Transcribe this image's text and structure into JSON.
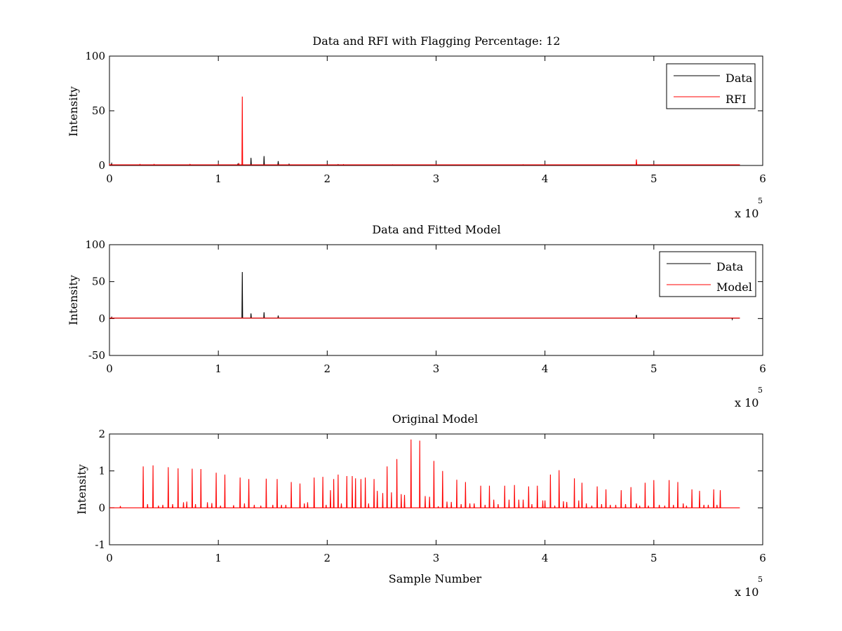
{
  "chart_data": [
    {
      "type": "line",
      "title": "Data and RFI with Flagging Percentage: 12",
      "xlabel": "",
      "ylabel": "Intensity",
      "xlim": [
        0,
        6
      ],
      "ylim": [
        0,
        100
      ],
      "x_ticks": [
        "0",
        "1",
        "2",
        "3",
        "4",
        "5",
        "6"
      ],
      "y_ticks": [
        "0",
        "50",
        "100"
      ],
      "x_multiplier": "x 10",
      "x_multiplier_exp": "5",
      "legend_position": "top-right",
      "series": [
        {
          "name": "Data",
          "color": "#000000",
          "baseline": 0.6,
          "x_end": 5.79,
          "spikes": [
            [
              0.02,
              1.8
            ],
            [
              0.74,
              0.9
            ],
            [
              1.18,
              1.4
            ],
            [
              1.3,
              7.0
            ],
            [
              1.42,
              8.5
            ],
            [
              1.55,
              4.0
            ],
            [
              1.65,
              1.2
            ],
            [
              2.1,
              0.9
            ],
            [
              2.6,
              0.7
            ],
            [
              3.1,
              0.6
            ],
            [
              4.0,
              0.6
            ],
            [
              4.9,
              0.5
            ],
            [
              5.7,
              0.5
            ]
          ]
        },
        {
          "name": "RFI",
          "color": "#ff0000",
          "baseline": 0.6,
          "x_end": 5.79,
          "spikes": [
            [
              0.0,
              1.6
            ],
            [
              0.28,
              1.0
            ],
            [
              0.41,
              1.0
            ],
            [
              0.74,
              1.0
            ],
            [
              1.0,
              1.0
            ],
            [
              1.19,
              1.5
            ],
            [
              1.22,
              63.0
            ],
            [
              2.15,
              0.9
            ],
            [
              3.0,
              0.7
            ],
            [
              3.8,
              0.8
            ],
            [
              4.84,
              5.5
            ]
          ]
        }
      ]
    },
    {
      "type": "line",
      "title": "Data and Fitted Model",
      "xlabel": "",
      "ylabel": "Intensity",
      "xlim": [
        0,
        6
      ],
      "ylim": [
        -50,
        100
      ],
      "x_ticks": [
        "0",
        "1",
        "2",
        "3",
        "4",
        "5",
        "6"
      ],
      "y_ticks": [
        "-50",
        "0",
        "50",
        "100"
      ],
      "x_multiplier": "x 10",
      "x_multiplier_exp": "5",
      "legend_position": "top-right",
      "series": [
        {
          "name": "Data",
          "color": "#000000",
          "baseline": 0.6,
          "x_end": 5.79,
          "spikes": [
            [
              0.02,
              1.8
            ],
            [
              1.22,
              63.0
            ],
            [
              1.3,
              7.0
            ],
            [
              1.42,
              8.5
            ],
            [
              1.55,
              4.0
            ],
            [
              4.84,
              5.0
            ],
            [
              5.72,
              -1.0
            ]
          ]
        },
        {
          "name": "Model",
          "color": "#ff0000",
          "baseline": 0.6,
          "x_end": 5.79,
          "spikes": [
            [
              0.02,
              1.0
            ],
            [
              5.72,
              0.8
            ]
          ]
        }
      ]
    },
    {
      "type": "line",
      "title": "Original Model",
      "xlabel": "Sample Number",
      "ylabel": "Intensity",
      "xlim": [
        0,
        6
      ],
      "ylim": [
        -1,
        2
      ],
      "x_ticks": [
        "0",
        "1",
        "2",
        "3",
        "4",
        "5",
        "6"
      ],
      "y_ticks": [
        "-1",
        "0",
        "1",
        "2"
      ],
      "x_multiplier": "x 10",
      "x_multiplier_exp": "5",
      "series": [
        {
          "color": "#ff0000",
          "baseline": 0.0,
          "x_end": 5.79,
          "spikes": [
            [
              0.1,
              0.05
            ],
            [
              0.31,
              1.12
            ],
            [
              0.35,
              0.1
            ],
            [
              0.4,
              1.15
            ],
            [
              0.45,
              0.06
            ],
            [
              0.49,
              0.08
            ],
            [
              0.54,
              1.1
            ],
            [
              0.58,
              0.1
            ],
            [
              0.63,
              1.07
            ],
            [
              0.68,
              0.15
            ],
            [
              0.71,
              0.17
            ],
            [
              0.76,
              1.06
            ],
            [
              0.79,
              0.1
            ],
            [
              0.84,
              1.05
            ],
            [
              0.9,
              0.15
            ],
            [
              0.94,
              0.13
            ],
            [
              0.98,
              0.95
            ],
            [
              1.02,
              0.06
            ],
            [
              1.06,
              0.9
            ],
            [
              1.14,
              0.07
            ],
            [
              1.2,
              0.82
            ],
            [
              1.24,
              0.12
            ],
            [
              1.28,
              0.78
            ],
            [
              1.33,
              0.08
            ],
            [
              1.39,
              0.06
            ],
            [
              1.44,
              0.79
            ],
            [
              1.5,
              0.08
            ],
            [
              1.54,
              0.78
            ],
            [
              1.58,
              0.08
            ],
            [
              1.62,
              0.08
            ],
            [
              1.67,
              0.7
            ],
            [
              1.75,
              0.66
            ],
            [
              1.79,
              0.12
            ],
            [
              1.82,
              0.15
            ],
            [
              1.88,
              0.82
            ],
            [
              1.96,
              0.84
            ],
            [
              1.99,
              0.08
            ],
            [
              2.03,
              0.48
            ],
            [
              2.06,
              0.78
            ],
            [
              2.1,
              0.9
            ],
            [
              2.13,
              0.12
            ],
            [
              2.18,
              0.86
            ],
            [
              2.23,
              0.86
            ],
            [
              2.26,
              0.8
            ],
            [
              2.31,
              0.78
            ],
            [
              2.35,
              0.82
            ],
            [
              2.38,
              0.12
            ],
            [
              2.43,
              0.78
            ],
            [
              2.46,
              0.46
            ],
            [
              2.51,
              0.4
            ],
            [
              2.55,
              1.12
            ],
            [
              2.59,
              0.42
            ],
            [
              2.64,
              1.32
            ],
            [
              2.68,
              0.37
            ],
            [
              2.71,
              0.35
            ],
            [
              2.77,
              1.85
            ],
            [
              2.85,
              1.82
            ],
            [
              2.9,
              0.32
            ],
            [
              2.94,
              0.3
            ],
            [
              2.98,
              1.27
            ],
            [
              3.02,
              0.04
            ],
            [
              3.06,
              1.0
            ],
            [
              3.1,
              0.17
            ],
            [
              3.14,
              0.16
            ],
            [
              3.19,
              0.76
            ],
            [
              3.23,
              0.1
            ],
            [
              3.27,
              0.7
            ],
            [
              3.31,
              0.12
            ],
            [
              3.35,
              0.12
            ],
            [
              3.41,
              0.6
            ],
            [
              3.45,
              0.08
            ],
            [
              3.49,
              0.6
            ],
            [
              3.53,
              0.22
            ],
            [
              3.57,
              0.1
            ],
            [
              3.63,
              0.6
            ],
            [
              3.67,
              0.22
            ],
            [
              3.72,
              0.62
            ],
            [
              3.76,
              0.22
            ],
            [
              3.8,
              0.22
            ],
            [
              3.85,
              0.58
            ],
            [
              3.88,
              0.1
            ],
            [
              3.93,
              0.6
            ],
            [
              3.98,
              0.2
            ],
            [
              4.0,
              0.2
            ],
            [
              4.05,
              0.9
            ],
            [
              4.09,
              0.06
            ],
            [
              4.13,
              1.02
            ],
            [
              4.17,
              0.18
            ],
            [
              4.2,
              0.16
            ],
            [
              4.27,
              0.8
            ],
            [
              4.31,
              0.2
            ],
            [
              4.34,
              0.68
            ],
            [
              4.38,
              0.12
            ],
            [
              4.43,
              0.06
            ],
            [
              4.48,
              0.58
            ],
            [
              4.52,
              0.1
            ],
            [
              4.56,
              0.5
            ],
            [
              4.6,
              0.08
            ],
            [
              4.65,
              0.08
            ],
            [
              4.7,
              0.48
            ],
            [
              4.74,
              0.1
            ],
            [
              4.79,
              0.56
            ],
            [
              4.84,
              0.12
            ],
            [
              4.87,
              0.06
            ],
            [
              4.92,
              0.68
            ],
            [
              4.95,
              0.06
            ],
            [
              5.0,
              0.75
            ],
            [
              5.05,
              0.08
            ],
            [
              5.1,
              0.06
            ],
            [
              5.14,
              0.75
            ],
            [
              5.18,
              0.08
            ],
            [
              5.22,
              0.7
            ],
            [
              5.27,
              0.12
            ],
            [
              5.3,
              0.06
            ],
            [
              5.35,
              0.5
            ],
            [
              5.42,
              0.46
            ],
            [
              5.46,
              0.08
            ],
            [
              5.5,
              0.08
            ],
            [
              5.55,
              0.5
            ],
            [
              5.58,
              0.08
            ],
            [
              5.61,
              0.48
            ]
          ]
        }
      ]
    }
  ]
}
